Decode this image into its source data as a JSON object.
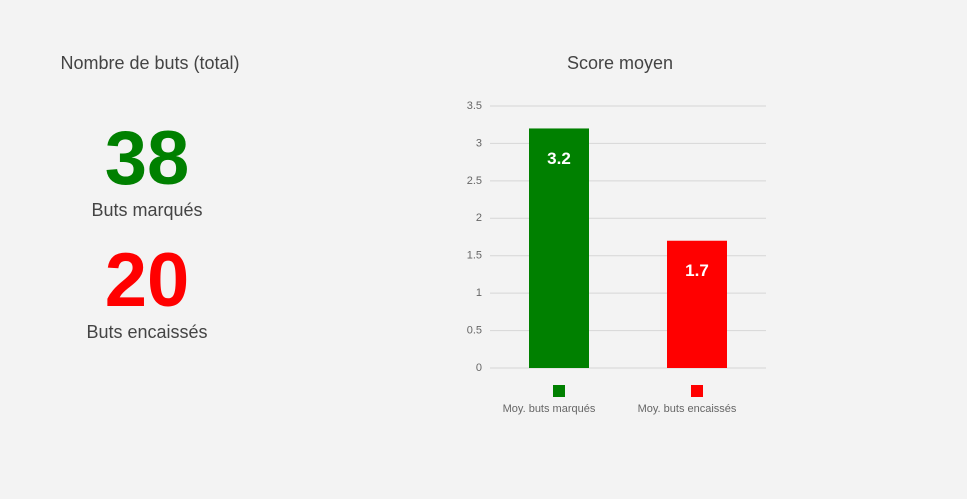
{
  "stats": {
    "title": "Nombre de buts (total)",
    "items": [
      {
        "value": 38,
        "label": "Buts marqués",
        "color": "#008000"
      },
      {
        "value": 20,
        "label": "Buts encaissés",
        "color": "#ff0000"
      }
    ]
  },
  "chart_data": {
    "type": "bar",
    "title": "Score moyen",
    "categories": [
      "Moy. buts marqués",
      "Moy. buts encaissés"
    ],
    "values": [
      3.2,
      1.7
    ],
    "colors": [
      "#008000",
      "#ff0000"
    ],
    "ylim": [
      0,
      3.5
    ],
    "yticks": [
      0,
      0.5,
      1,
      1.5,
      2,
      2.5,
      3,
      3.5
    ],
    "grid": true
  }
}
